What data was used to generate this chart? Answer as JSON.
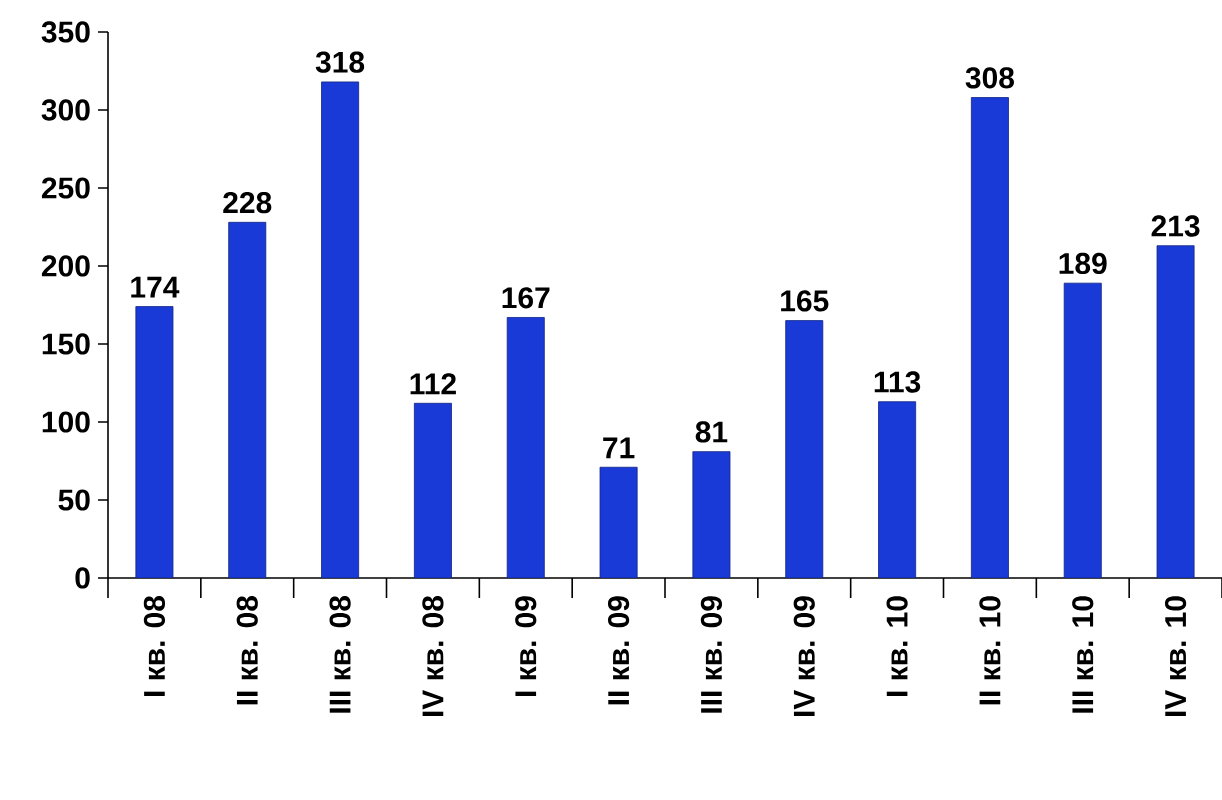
{
  "chart_data": {
    "type": "bar",
    "categories": [
      "I кв. 08",
      "II кв. 08",
      "III кв. 08",
      "IV кв. 08",
      "I кв. 09",
      "II кв. 09",
      "III кв. 09",
      "IV кв. 09",
      "I кв. 10",
      "II кв. 10",
      "III кв. 10",
      "IV кв. 10"
    ],
    "values": [
      174,
      228,
      318,
      112,
      167,
      71,
      81,
      165,
      113,
      308,
      189,
      213
    ],
    "color": "#1a3ad8",
    "ylim": [
      0,
      350
    ],
    "yticks": [
      0,
      50,
      100,
      150,
      200,
      250,
      300,
      350
    ],
    "data_labels": true
  }
}
